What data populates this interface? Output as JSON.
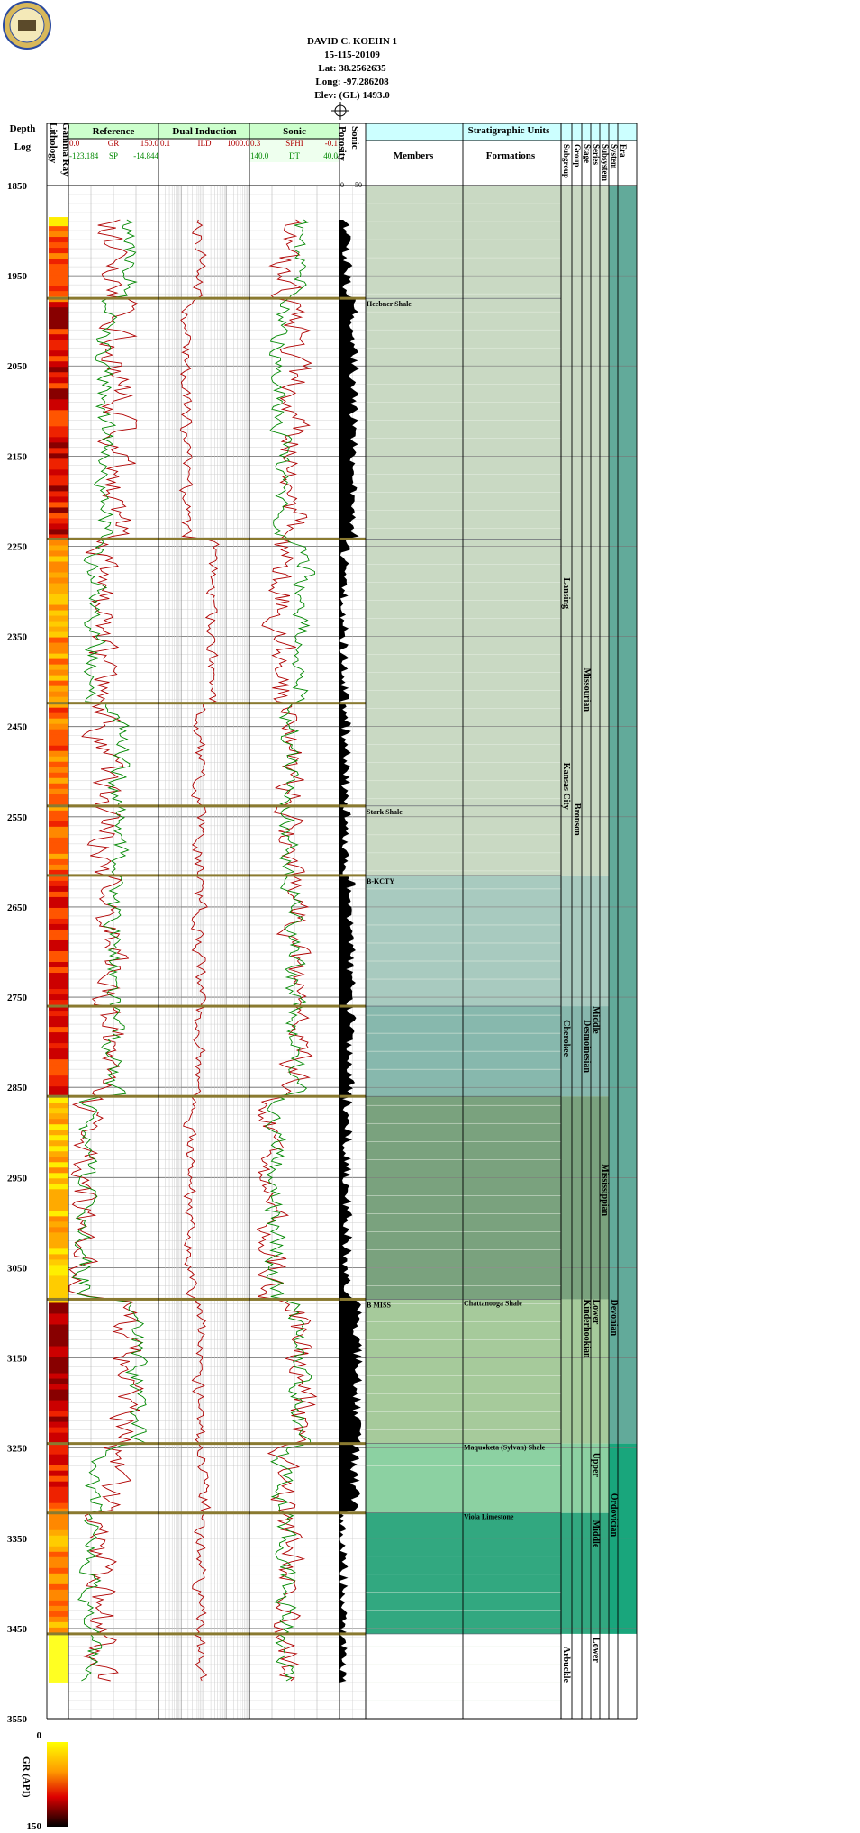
{
  "well": {
    "name": "DAVID C. KOEHN 1",
    "api": "15-115-20109",
    "lat": "Lat: 38.2562635",
    "long": "Long: -97.286208",
    "elev": "Elev: (GL) 1493.0"
  },
  "header": {
    "depth": "Depth",
    "log": "Log",
    "lithology": "Lithology",
    "gamma_ray": "Gamma Ray",
    "reference": "Reference",
    "dual_induction": "Dual Induction",
    "sonic": "Sonic",
    "porosity": "Porosity",
    "porosity_sub": "Sonic",
    "strat_title": "Stratigraphic Units",
    "members": "Members",
    "formations": "Formations",
    "strat_cols": [
      "Subgroup",
      "Group",
      "Stage",
      "Series",
      "Subsystem",
      "System",
      "Era"
    ]
  },
  "scales": {
    "gr": {
      "min": "0.0",
      "label": "GR",
      "max": "150.0"
    },
    "sp": {
      "min": "-123.184",
      "label": "SP",
      "max": "-14.844"
    },
    "ild": {
      "min": "0.1",
      "label": "ILD",
      "max": "1000.0"
    },
    "sphi": {
      "min": "0.3",
      "label": "SPHI",
      "max": "-0.1"
    },
    "dt": {
      "min": "140.0",
      "label": "DT",
      "max": "40.0"
    },
    "por": {
      "min": "0",
      "max": "50"
    }
  },
  "colors": {
    "red": "#b00000",
    "green": "#008800",
    "sonic_band": "#ccffcc",
    "header_band": "#ccffff"
  },
  "chart_data": {
    "type": "line",
    "depth_range": [
      1850,
      3550
    ],
    "depth_labels": [
      1850,
      1950,
      2050,
      2150,
      2250,
      2350,
      2450,
      2550,
      2650,
      2750,
      2850,
      2950,
      3050,
      3150,
      3250,
      3350,
      3450,
      3550
    ],
    "tops": [
      {
        "depth": 1975,
        "member": "Heebner Shale",
        "formation": ""
      },
      {
        "depth": 2242,
        "member": "",
        "formation": ""
      },
      {
        "depth": 2424,
        "member": "",
        "formation": ""
      },
      {
        "depth": 2538,
        "member": "Stark Shale",
        "formation": ""
      },
      {
        "depth": 2615,
        "member": "B-KCTY",
        "formation": ""
      },
      {
        "depth": 2760,
        "member": "",
        "formation": ""
      },
      {
        "depth": 2860,
        "member": "",
        "formation": ""
      },
      {
        "depth": 3085,
        "member": "B MISS",
        "formation": "Chattanooga Shale"
      },
      {
        "depth": 3245,
        "member": "",
        "formation": "Maquoketa (Sylvan) Shale"
      },
      {
        "depth": 3322,
        "member": "",
        "formation": "Viola Limestone"
      },
      {
        "depth": 3456,
        "member": "",
        "formation": ""
      }
    ],
    "strat_bands": [
      {
        "top": 1850,
        "base": 2615,
        "color": "#c3d5bc"
      },
      {
        "top": 2615,
        "base": 2760,
        "color": "#9fc4b8"
      },
      {
        "top": 2760,
        "base": 2860,
        "color": "#7ab0a4"
      },
      {
        "top": 2860,
        "base": 3085,
        "color": "#6c9870"
      },
      {
        "top": 3085,
        "base": 3245,
        "color": "#9cc490"
      },
      {
        "top": 3245,
        "base": 3322,
        "color": "#80cc98"
      },
      {
        "top": 3322,
        "base": 3456,
        "color": "#1c9e72"
      }
    ],
    "era_bands": [
      {
        "top": 1850,
        "base": 3245,
        "color": "#62aa9a"
      },
      {
        "top": 3245,
        "base": 3456,
        "color": "#19a67c"
      }
    ],
    "strat_labels": [
      {
        "col": "Subgroup",
        "text": "Lansing",
        "depth": 2285
      },
      {
        "col": "Subgroup",
        "text": "Kansas City",
        "depth": 2490
      },
      {
        "col": "Group",
        "text": "Bronson",
        "depth": 2535
      },
      {
        "col": "Stage",
        "text": "Missourian",
        "depth": 2385
      },
      {
        "col": "Subgroup",
        "text": "Cherokee",
        "depth": 2775
      },
      {
        "col": "Stage",
        "text": "Desmoinesian",
        "depth": 2775
      },
      {
        "col": "Series",
        "text": "Middle",
        "depth": 2760
      },
      {
        "col": "Subsystem",
        "text": "Mississippian",
        "depth": 2935
      },
      {
        "col": "Stage",
        "text": "Kinderhookian",
        "depth": 3085
      },
      {
        "col": "Series",
        "text": "Lower",
        "depth": 3085
      },
      {
        "col": "System",
        "text": "Devonian",
        "depth": 3085
      },
      {
        "col": "Series",
        "text": "Upper",
        "depth": 3255
      },
      {
        "col": "Series",
        "text": "Middle",
        "depth": 3330
      },
      {
        "col": "System",
        "text": "Ordovician",
        "depth": 3300
      },
      {
        "col": "Subgroup",
        "text": "Arbuckle",
        "depth": 3470
      },
      {
        "col": "Series",
        "text": "Lower",
        "depth": 3460
      }
    ],
    "gr_legend": {
      "label": "GR (API)",
      "min": "0",
      "max": "150"
    }
  }
}
